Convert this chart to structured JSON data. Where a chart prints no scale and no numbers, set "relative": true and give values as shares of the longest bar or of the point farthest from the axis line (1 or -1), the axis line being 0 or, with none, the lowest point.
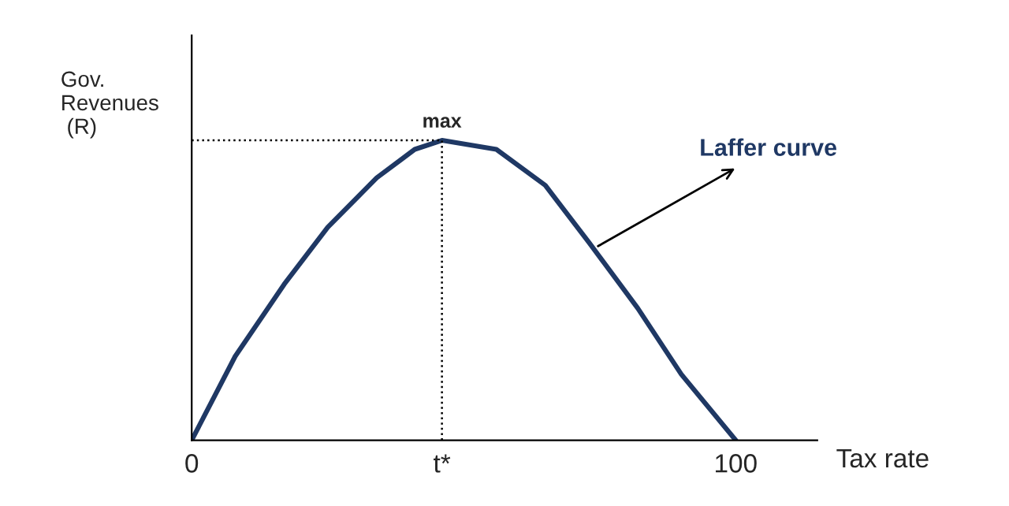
{
  "chart_data": {
    "type": "line",
    "relative": true,
    "xlabel": "Tax rate",
    "ylabel": "Gov.\nRevenues\n (R)",
    "x": [
      0,
      8,
      17,
      25,
      34,
      41,
      46,
      56,
      65,
      73,
      82,
      90,
      100
    ],
    "xlim": [
      0,
      115
    ],
    "xticks": [
      0,
      {
        "value": 46,
        "label": "t*"
      },
      100
    ],
    "series": [
      {
        "color": "#1f3864",
        "values": [
          0,
          0.28,
          0.52,
          0.71,
          0.875,
          0.97,
          1,
          0.97,
          0.85,
          0.66,
          0.44,
          0.22,
          0
        ]
      }
    ],
    "ref_lines": [
      {
        "axis": "y",
        "value": 1,
        "label": null,
        "line_style": "dotted",
        "color": "#000000"
      },
      {
        "axis": "x",
        "value": 46,
        "label": null,
        "line_style": "dotted",
        "color": "#000000"
      }
    ],
    "annotations": [
      {
        "text": "max",
        "x": 46,
        "y": 1
      },
      {
        "text": "Laffer curve",
        "x": 74,
        "y": 0.64
      }
    ],
    "grid": false,
    "legend": false,
    "marker": "none",
    "line_style": "solid"
  }
}
